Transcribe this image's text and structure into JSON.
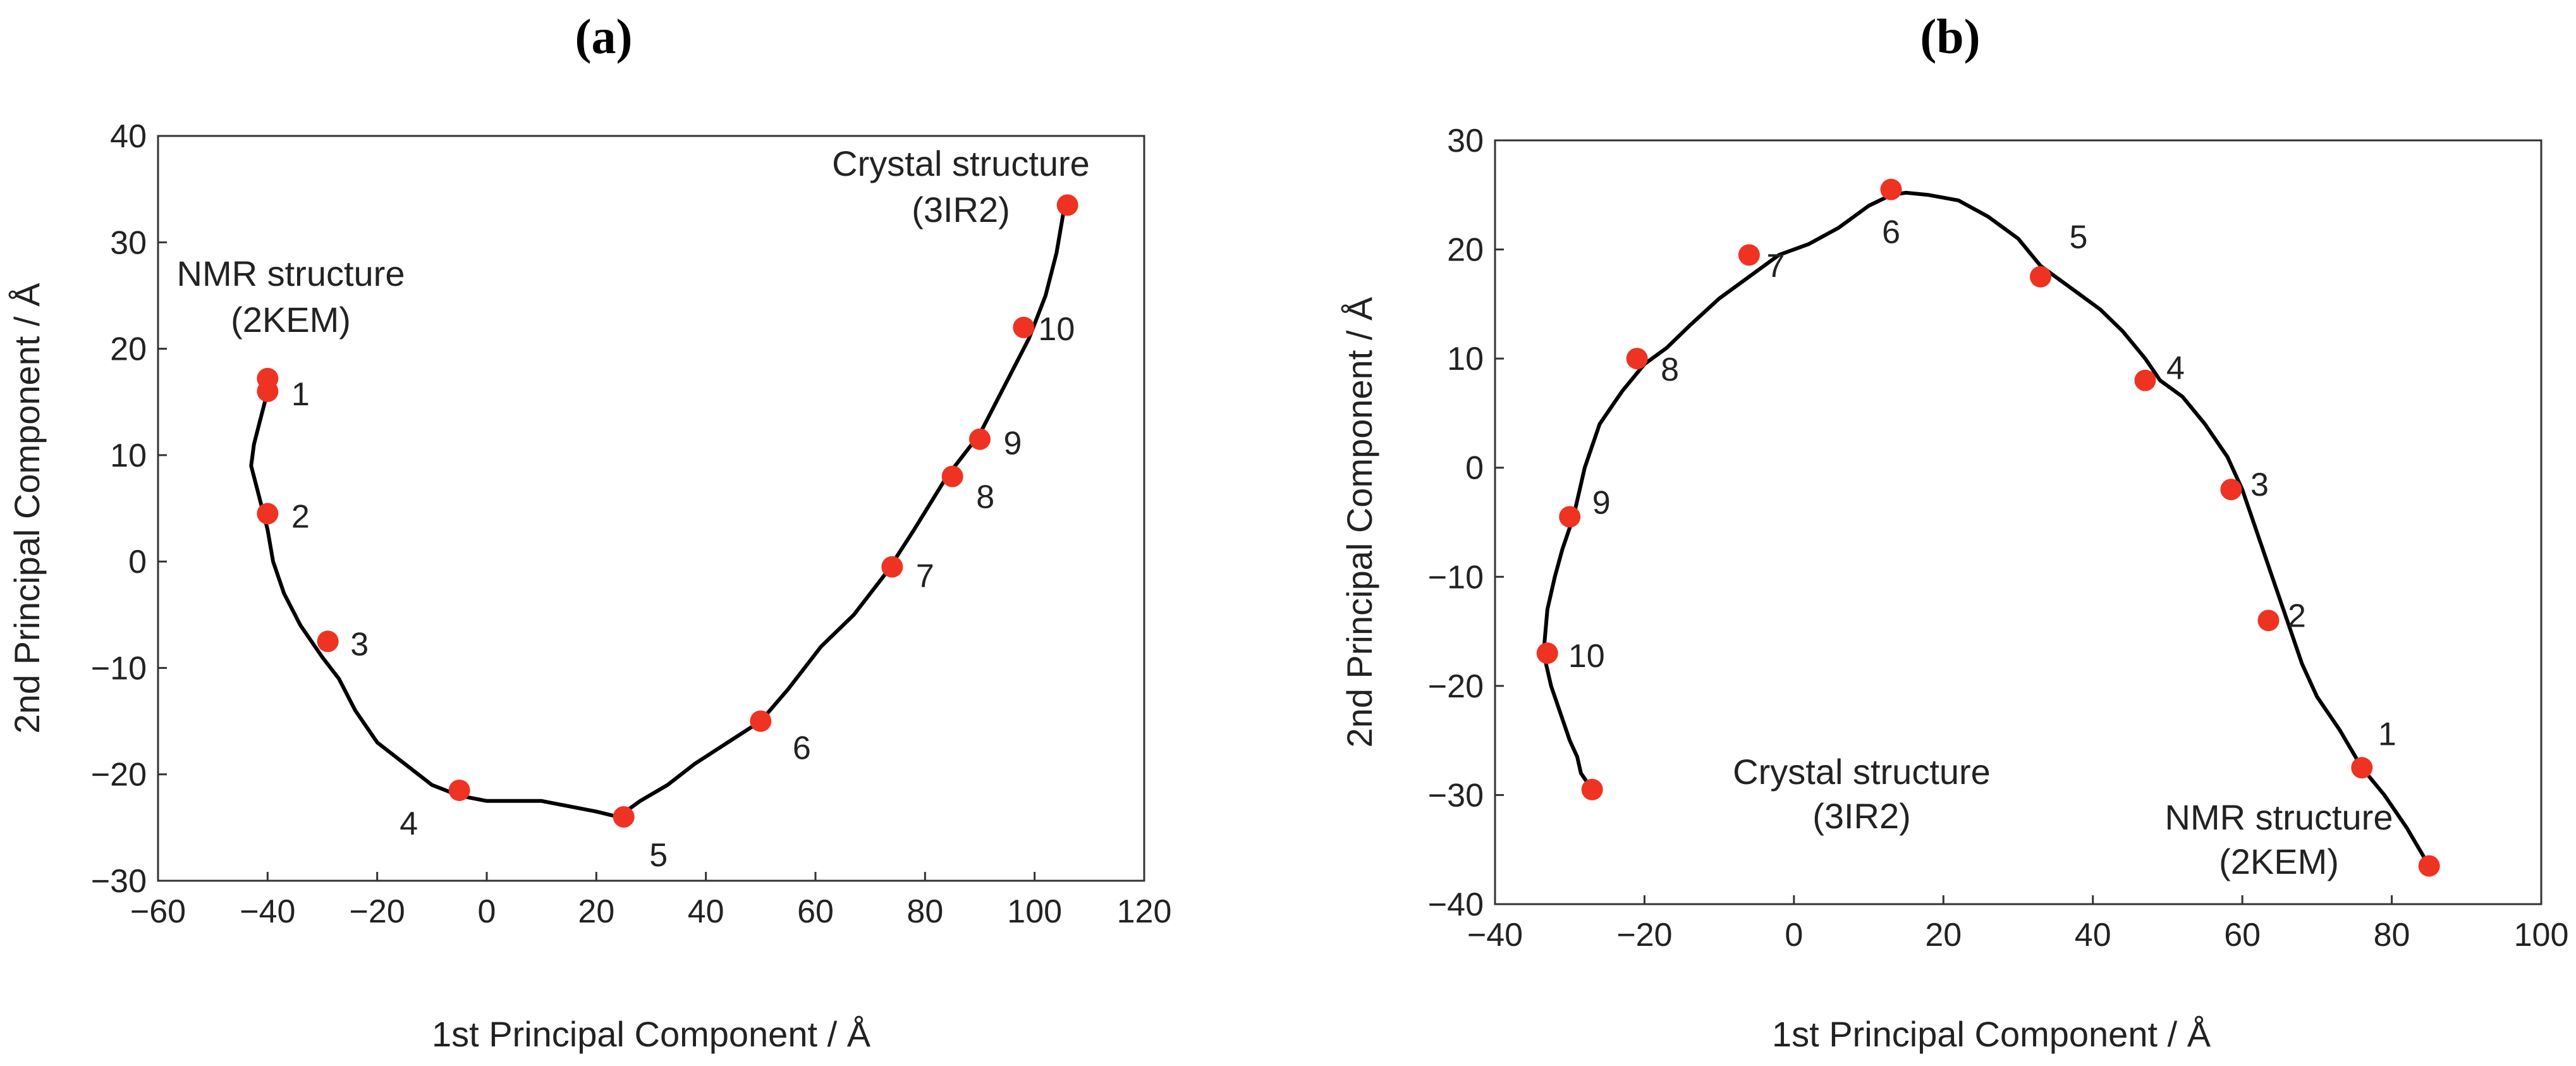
{
  "chart_data": [
    {
      "type": "line",
      "panel_label": "(a)",
      "xlabel": "1st Principal Component / Å",
      "ylabel": "2nd Principal Component / Å",
      "xlim": [
        -60,
        120
      ],
      "ylim": [
        -30,
        40
      ],
      "xticks": [
        -60,
        -40,
        -20,
        0,
        20,
        40,
        60,
        80,
        100,
        120
      ],
      "yticks": [
        -30,
        -20,
        -10,
        0,
        10,
        20,
        30,
        40
      ],
      "trajectory": {
        "x": [
          -40,
          -40.5,
          -41.5,
          -42.5,
          -43,
          -42,
          -41,
          -40,
          -39,
          -37,
          -34,
          -30,
          -27,
          -24,
          -20,
          -15,
          -10,
          -5,
          0,
          5,
          10,
          15,
          20,
          24,
          28,
          33,
          38,
          44,
          50,
          55,
          61,
          67,
          73,
          78,
          84,
          90,
          95,
          99,
          102,
          104,
          105.5
        ],
        "y": [
          17,
          15,
          13,
          11,
          9,
          7,
          5,
          3,
          0,
          -3,
          -6,
          -9,
          -11,
          -14,
          -17,
          -19,
          -21,
          -22,
          -22.5,
          -22.5,
          -22.5,
          -23,
          -23.5,
          -24,
          -22.5,
          -21,
          -19,
          -17,
          -15,
          -12,
          -8,
          -5,
          -1,
          3,
          8,
          12,
          17,
          21,
          25,
          29,
          33.5
        ]
      },
      "markers": [
        {
          "label": "1",
          "x": -40,
          "y": 16
        },
        {
          "label": "2",
          "x": -40,
          "y": 4.5
        },
        {
          "label": "3",
          "x": -29,
          "y": -7.5
        },
        {
          "label": "4",
          "x": -5,
          "y": -21.5
        },
        {
          "label": "5",
          "x": 25,
          "y": -24
        },
        {
          "label": "6",
          "x": 50,
          "y": -15
        },
        {
          "label": "7",
          "x": 74,
          "y": -0.5
        },
        {
          "label": "8",
          "x": 85,
          "y": 8
        },
        {
          "label": "9",
          "x": 90,
          "y": 11.5
        },
        {
          "label": "10",
          "x": 98,
          "y": 22
        },
        {
          "label": "",
          "x": 106,
          "y": 33.5
        },
        {
          "label": "",
          "x": -40,
          "y": 17.2
        }
      ],
      "annotations": [
        {
          "lines": [
            "NMR structure",
            "(2KEM)"
          ]
        },
        {
          "lines": [
            "Crystal structure",
            "(3IR2)"
          ]
        }
      ],
      "marker_color": "#ee3322",
      "line_color": "#000000"
    },
    {
      "type": "line",
      "panel_label": "(b)",
      "xlabel": "1st Principal Component / Å",
      "ylabel": "2nd Principal Component / Å",
      "xlim": [
        -40,
        100
      ],
      "ylim": [
        -40,
        30
      ],
      "xticks": [
        -40,
        -20,
        0,
        20,
        40,
        60,
        80,
        100
      ],
      "yticks": [
        -40,
        -30,
        -20,
        -10,
        0,
        10,
        20,
        30
      ],
      "trajectory": {
        "x": [
          85,
          82,
          79,
          76,
          73,
          70,
          68,
          66,
          64,
          62,
          60,
          58,
          55,
          52,
          49,
          47,
          44,
          41,
          38,
          35,
          33,
          30,
          26,
          22,
          18,
          15,
          13,
          10,
          6,
          2,
          -2,
          -6,
          -10,
          -14,
          -17,
          -20,
          -23,
          -26,
          -28,
          -29.5,
          -31,
          -32,
          -33,
          -33.5,
          -32.5,
          -31,
          -30,
          -29,
          -28.5,
          -27
        ],
        "y": [
          -36.5,
          -33,
          -30,
          -27.5,
          -24,
          -21,
          -18,
          -14,
          -10,
          -6,
          -2,
          1,
          4,
          6.5,
          8,
          10,
          12.5,
          14.5,
          16,
          17.5,
          18.5,
          21,
          23,
          24.5,
          25,
          25.2,
          25,
          24,
          22,
          20.5,
          19.5,
          17.5,
          15.5,
          13,
          11,
          9.5,
          7,
          4,
          0,
          -4.5,
          -7.5,
          -10,
          -13,
          -17,
          -20,
          -23,
          -25,
          -26.5,
          -28,
          -29.5
        ]
      },
      "markers": [
        {
          "label": "1",
          "x": 76,
          "y": -27.5
        },
        {
          "label": "2",
          "x": 63.5,
          "y": -14
        },
        {
          "label": "3",
          "x": 58.5,
          "y": -2
        },
        {
          "label": "4",
          "x": 47,
          "y": 8
        },
        {
          "label": "5",
          "x": 33,
          "y": 17.5
        },
        {
          "label": "6",
          "x": 13,
          "y": 25.5
        },
        {
          "label": "7",
          "x": -6,
          "y": 19.5
        },
        {
          "label": "8",
          "x": -21,
          "y": 10
        },
        {
          "label": "9",
          "x": -30,
          "y": -4.5
        },
        {
          "label": "10",
          "x": -33,
          "y": -17
        },
        {
          "label": "",
          "x": -27,
          "y": -29.5
        },
        {
          "label": "",
          "x": 85,
          "y": -36.5
        }
      ],
      "annotations": [
        {
          "lines": [
            "Crystal structure",
            "(3IR2)"
          ]
        },
        {
          "lines": [
            "NMR structure",
            "(2KEM)"
          ]
        }
      ],
      "marker_color": "#ee3322",
      "line_color": "#000000"
    }
  ]
}
